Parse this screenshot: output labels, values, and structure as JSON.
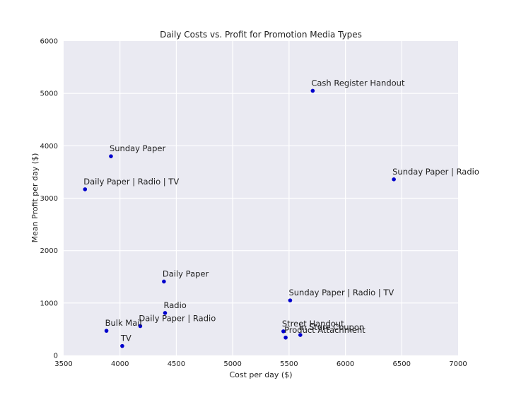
{
  "chart_data": {
    "type": "scatter",
    "title": "Daily Costs vs. Profit for Promotion Media Types",
    "xlabel": "Cost per day ($)",
    "ylabel": "Mean Profit per day ($)",
    "xlim": [
      3500,
      7000
    ],
    "ylim": [
      0,
      6000
    ],
    "xticks": [
      3500,
      4000,
      4500,
      5000,
      5500,
      6000,
      6500,
      7000
    ],
    "yticks": [
      0,
      1000,
      2000,
      3000,
      4000,
      5000,
      6000
    ],
    "grid": true,
    "point_color": "#0000cc",
    "plot_background": "#eaeaf2",
    "points": [
      {
        "label": "Cash Register Handout",
        "x": 5710,
        "y": 5050
      },
      {
        "label": "Sunday Paper",
        "x": 3920,
        "y": 3800
      },
      {
        "label": "Sunday Paper | Radio",
        "x": 6430,
        "y": 3360
      },
      {
        "label": "Daily Paper | Radio | TV",
        "x": 3690,
        "y": 3170
      },
      {
        "label": "Daily Paper",
        "x": 4390,
        "y": 1410
      },
      {
        "label": "Sunday Paper | Radio | TV",
        "x": 5510,
        "y": 1050
      },
      {
        "label": "Radio",
        "x": 4400,
        "y": 810
      },
      {
        "label": "Daily Paper | Radio",
        "x": 4180,
        "y": 560
      },
      {
        "label": "Bulk Mail",
        "x": 3880,
        "y": 470
      },
      {
        "label": "Street Handout",
        "x": 5450,
        "y": 460
      },
      {
        "label": "In Store Coupon",
        "x": 5600,
        "y": 390
      },
      {
        "label": "Product Attachment",
        "x": 5470,
        "y": 340
      },
      {
        "label": "TV",
        "x": 4020,
        "y": 180
      }
    ]
  }
}
